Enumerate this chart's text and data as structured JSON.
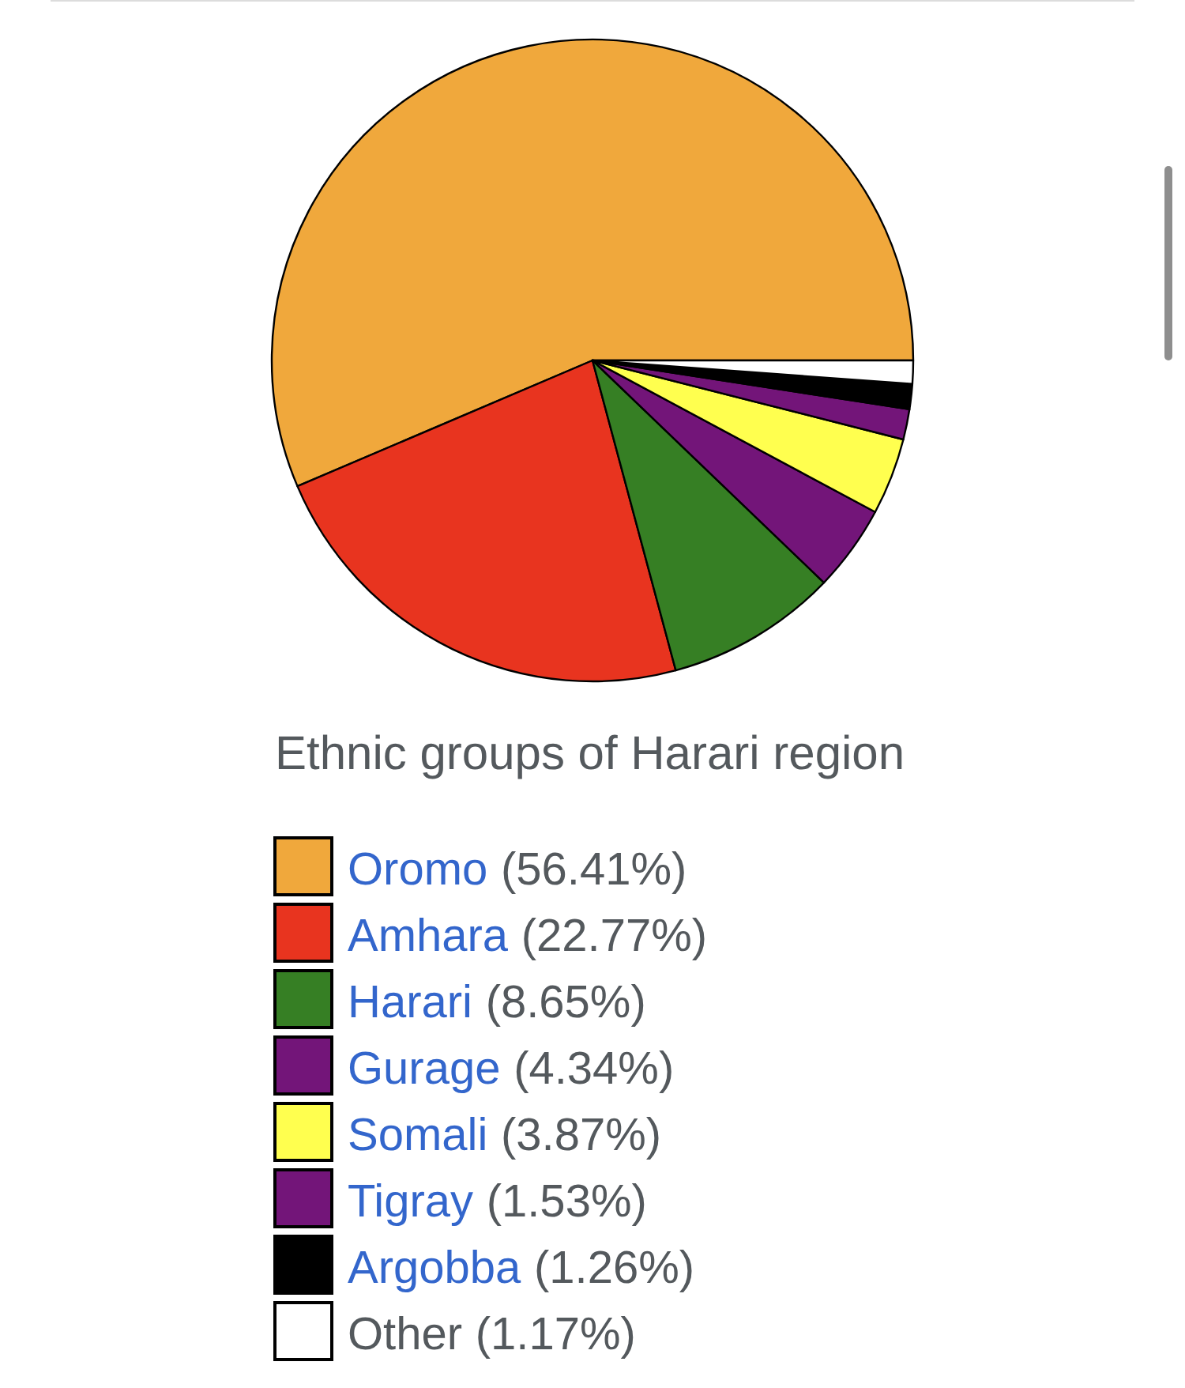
{
  "chart_data": {
    "type": "pie",
    "title": "Ethnic groups of Harari region",
    "categories": [
      "Oromo",
      "Amhara",
      "Harari",
      "Gurage",
      "Somali",
      "Tigray",
      "Argobba",
      "Other"
    ],
    "values": [
      56.41,
      22.77,
      8.65,
      4.34,
      3.87,
      1.53,
      1.26,
      1.17
    ],
    "colors": [
      "#f0a83c",
      "#e8341f",
      "#367f24",
      "#731579",
      "#ffff4f",
      "#731579",
      "#000000",
      "#ffffff"
    ],
    "value_labels": [
      "(56.41%)",
      "(22.77%)",
      "(8.65%)",
      "(4.34%)",
      "(3.87%)",
      "(1.53%)",
      "(1.26%)",
      "(1.17%)"
    ],
    "legend": "bottom"
  }
}
